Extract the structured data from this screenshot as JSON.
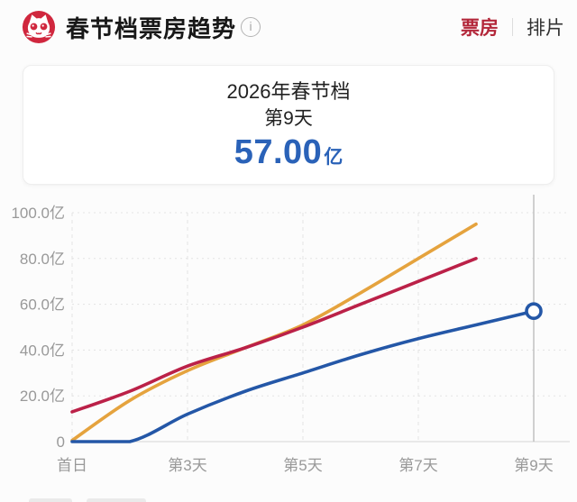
{
  "header": {
    "app_logo": "maoyan-cat-logo",
    "title": "春节档票房趋势",
    "info_icon_glyph": "i",
    "tabs": [
      {
        "id": "boxoffice",
        "label": "票房",
        "active": true
      },
      {
        "id": "screening",
        "label": "排片",
        "active": false
      }
    ]
  },
  "summary_card": {
    "line1": "2026年春节档",
    "line2": "第9天",
    "value": "57.00",
    "unit": "亿"
  },
  "colors": {
    "brand_red": "#d0273e",
    "active_tab_red": "#b3273a",
    "value_blue": "#2a62b8",
    "line_blue": "#2457a7",
    "line_red": "#bb2148",
    "line_orange": "#e5a33e",
    "axis_text": "#999999",
    "grid": "#e3e3e3",
    "baseline": "#d5d5d5",
    "current_day_line": "#b4b4b4"
  },
  "chart_data": {
    "type": "line",
    "title": "春节档票房趋势",
    "unit": "亿",
    "xlim": [
      1,
      9
    ],
    "ylim": [
      0,
      100
    ],
    "grid": {
      "horizontal_values": [
        0,
        20,
        40,
        60,
        80,
        100
      ],
      "vertical_days": [
        1,
        3,
        5,
        7
      ],
      "current_day_line": 9
    },
    "y_ticks": [
      {
        "value": 100,
        "label": "100.0亿"
      },
      {
        "value": 80,
        "label": "80.0亿"
      },
      {
        "value": 60,
        "label": "60.0亿"
      },
      {
        "value": 40,
        "label": "40.0亿"
      },
      {
        "value": 20,
        "label": "20.0亿"
      },
      {
        "value": 0,
        "label": "0"
      }
    ],
    "x_ticks": [
      {
        "day": 1,
        "label": "首日"
      },
      {
        "day": 3,
        "label": "第3天"
      },
      {
        "day": 5,
        "label": "第5天"
      },
      {
        "day": 7,
        "label": "第7天"
      },
      {
        "day": 9,
        "label": "第9天"
      }
    ],
    "series": [
      {
        "name": "series-orange",
        "color": "#e5a33e",
        "days": [
          1,
          2,
          3,
          4,
          5,
          6,
          7,
          8
        ],
        "values": [
          0.5,
          18,
          31,
          41,
          51,
          65,
          80,
          95
        ]
      },
      {
        "name": "series-red",
        "color": "#bb2148",
        "days": [
          1,
          2,
          3,
          4,
          5,
          6,
          7,
          8
        ],
        "values": [
          13,
          22,
          33,
          41,
          50,
          60,
          70,
          80
        ]
      },
      {
        "name": "series-blue-current",
        "color": "#2457a7",
        "days": [
          1,
          2,
          3,
          4,
          5,
          6,
          7,
          8,
          9
        ],
        "values": [
          0,
          0,
          12,
          22,
          30,
          38,
          45,
          51,
          57
        ],
        "endpoint_marker": {
          "day": 9,
          "value": 57
        }
      }
    ]
  }
}
